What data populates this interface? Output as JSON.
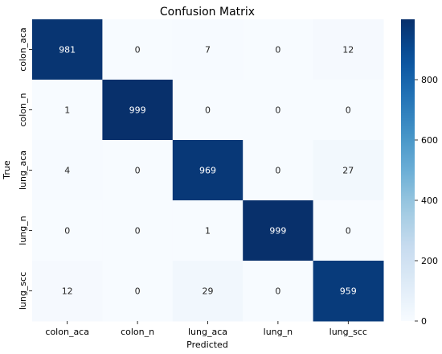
{
  "chart_data": {
    "type": "heatmap",
    "title": "Confusion Matrix",
    "xlabel": "Predicted",
    "ylabel": "True",
    "x_categories": [
      "colon_aca",
      "colon_n",
      "lung_aca",
      "lung_n",
      "lung_scc"
    ],
    "y_categories": [
      "colon_aca",
      "colon_n",
      "lung_aca",
      "lung_n",
      "lung_scc"
    ],
    "values": [
      [
        981,
        0,
        7,
        0,
        12
      ],
      [
        1,
        999,
        0,
        0,
        0
      ],
      [
        4,
        0,
        969,
        0,
        27
      ],
      [
        0,
        0,
        1,
        999,
        0
      ],
      [
        12,
        0,
        29,
        0,
        959
      ]
    ],
    "colorbar": {
      "range": [
        0,
        1000
      ],
      "ticks": [
        0,
        200,
        400,
        600,
        800
      ],
      "colormap": "Blues",
      "low_color": "#f7fbff",
      "high_color": "#08306b"
    },
    "annotation_colors": {
      "dark": "#262626",
      "light": "#ffffff"
    },
    "grid": false
  }
}
